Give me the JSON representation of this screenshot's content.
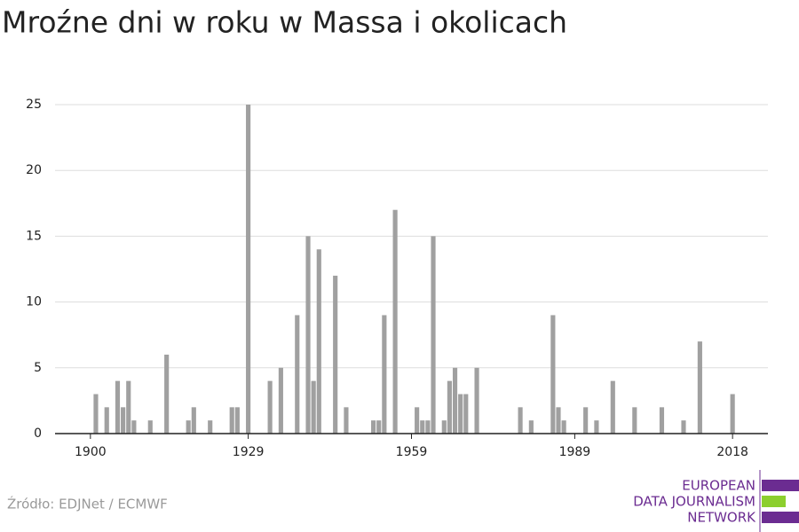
{
  "chart_data": {
    "type": "bar",
    "title": "Mroźne dni w roku w Massa i okolicach",
    "x": [
      1901,
      1903,
      1905,
      1906,
      1907,
      1908,
      1911,
      1914,
      1918,
      1919,
      1922,
      1926,
      1927,
      1929,
      1933,
      1935,
      1938,
      1940,
      1941,
      1942,
      1945,
      1947,
      1952,
      1953,
      1954,
      1956,
      1960,
      1961,
      1962,
      1963,
      1965,
      1966,
      1967,
      1968,
      1969,
      1971,
      1979,
      1981,
      1985,
      1986,
      1987,
      1991,
      1993,
      1996,
      2000,
      2005,
      2009,
      2012,
      2018
    ],
    "values": [
      3,
      2,
      4,
      2,
      4,
      1,
      1,
      6,
      1,
      2,
      1,
      2,
      2,
      25,
      4,
      5,
      9,
      15,
      4,
      14,
      12,
      2,
      1,
      1,
      9,
      17,
      2,
      1,
      1,
      15,
      1,
      4,
      5,
      3,
      3,
      5,
      2,
      1,
      9,
      2,
      1,
      2,
      1,
      4,
      2,
      2,
      1,
      7,
      3
    ],
    "color": "#a0a0a0",
    "xlim": [
      1893.5,
      2024.5
    ],
    "xticks": [
      1900,
      1929,
      1959,
      1989,
      2018
    ],
    "ylim": [
      0,
      25
    ],
    "yticks": [
      0,
      5,
      10,
      15,
      20,
      25
    ],
    "grid": true,
    "source": "Źródło: EDJNet / ECMWF",
    "logo": [
      "EUROPEAN",
      "DATA JOURNALISM",
      "NETWORK"
    ]
  }
}
